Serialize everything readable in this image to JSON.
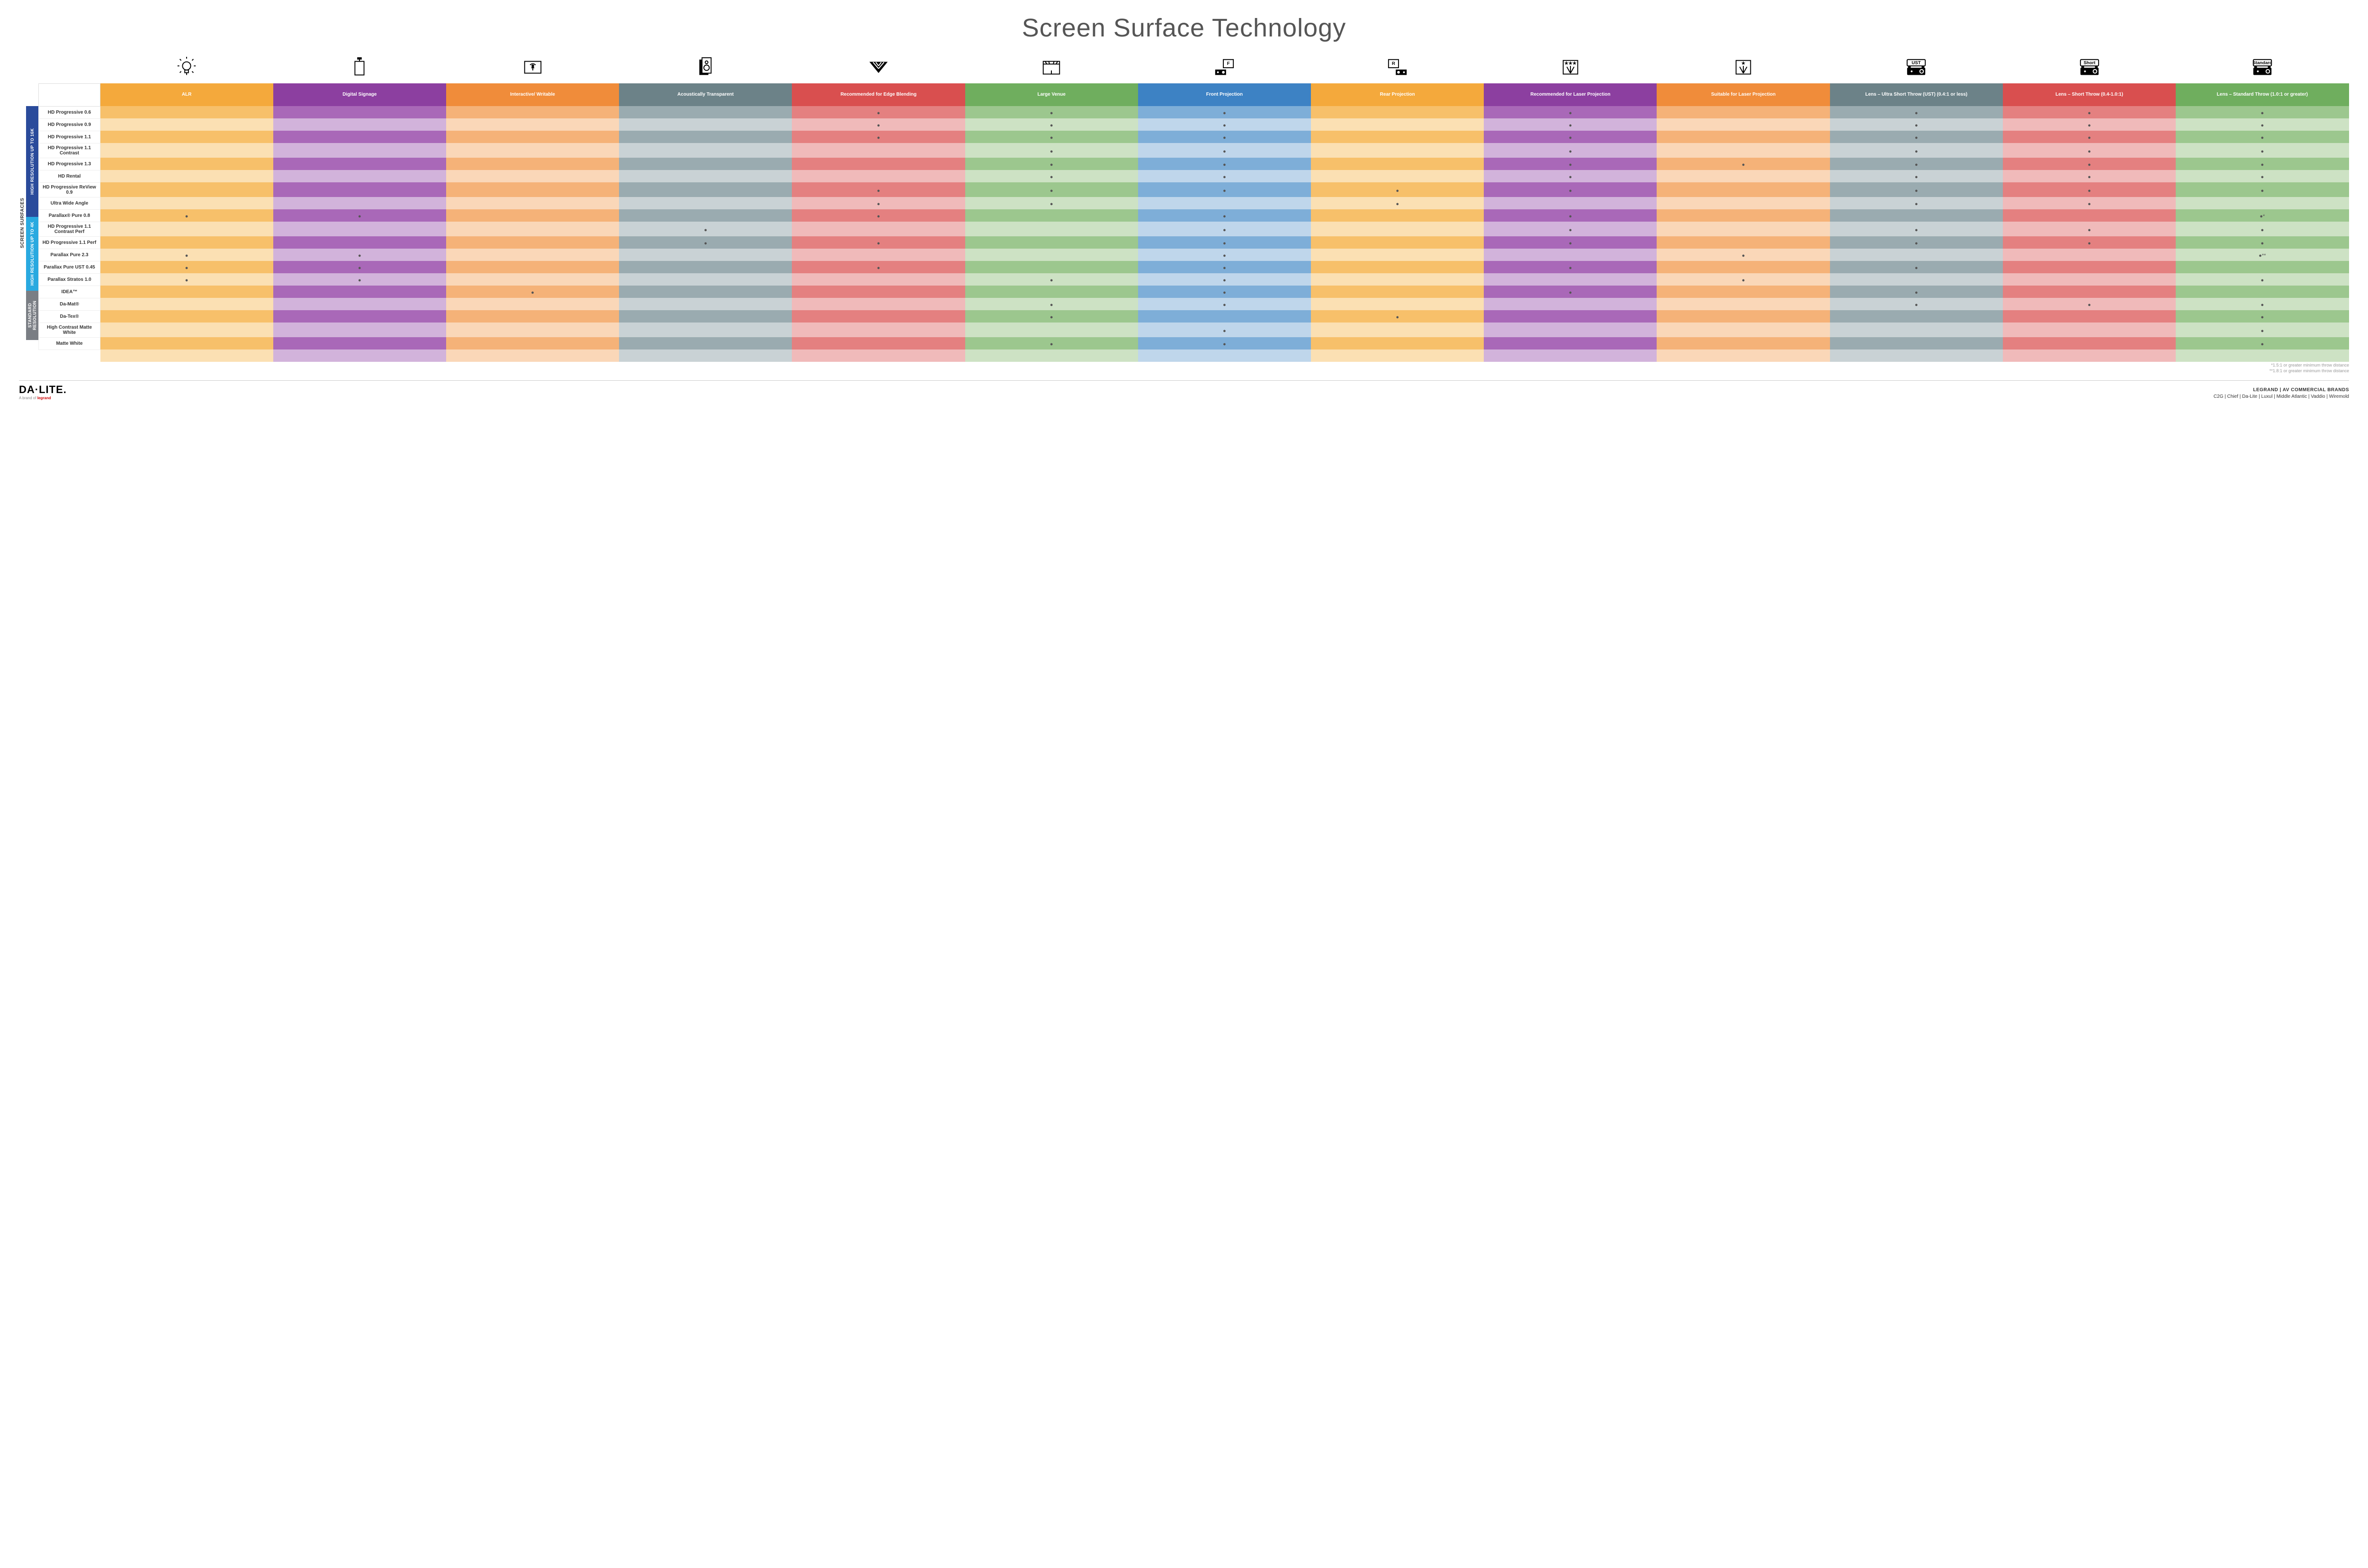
{
  "title": "Screen Surface Technology",
  "outer_label": "SCREEN SURFACES",
  "categories": [
    {
      "label": "HIGH RESOLUTION UP TO 16K",
      "bg": "#2a4b9b",
      "rows": 9
    },
    {
      "label": "HIGH RESOLUTION UP TO 4K",
      "bg": "#29a9e0",
      "rows": 6
    },
    {
      "label": "STANDARD RESOLUTION",
      "bg": "#7a7e84",
      "rows": 4
    }
  ],
  "features_header": "FEATURES",
  "columns": [
    {
      "label": "ALR",
      "bg": "#f4a93c",
      "alt": "#f7c06a",
      "alt2": "#fbe0b3",
      "icon": "bulb"
    },
    {
      "label": "Digital Signage",
      "bg": "#8c3fa0",
      "alt": "#a968b8",
      "alt2": "#d2b3db",
      "icon": "signage"
    },
    {
      "label": "Interactive/ Writable",
      "bg": "#f08c3a",
      "alt": "#f5b278",
      "alt2": "#fad7b8",
      "icon": "touch"
    },
    {
      "label": "Acoustically Transparent",
      "bg": "#6c8288",
      "alt": "#9aabb0",
      "alt2": "#c9d2d5",
      "icon": "speaker"
    },
    {
      "label": "Recommended for Edge Blending",
      "bg": "#d94f4f",
      "alt": "#e48080",
      "alt2": "#f0baba",
      "icon": "blend"
    },
    {
      "label": "Large Venue",
      "bg": "#6fae5e",
      "alt": "#9cc78e",
      "alt2": "#cde2c4",
      "icon": "venue"
    },
    {
      "label": "Front Projection",
      "bg": "#3d82c4",
      "alt": "#7eaed8",
      "alt2": "#bfd6eb",
      "icon": "front"
    },
    {
      "label": "Rear Projection",
      "bg": "#f4a93c",
      "alt": "#f7c06a",
      "alt2": "#fbe0b3",
      "icon": "rear"
    },
    {
      "label": "Recommended for Laser Projection",
      "bg": "#8c3fa0",
      "alt": "#a968b8",
      "alt2": "#d2b3db",
      "icon": "laser3"
    },
    {
      "label": "Suitable for Laser Projection",
      "bg": "#f08c3a",
      "alt": "#f5b278",
      "alt2": "#fad7b8",
      "icon": "laser1"
    },
    {
      "label": "Lens – Ultra Short Throw (UST) (0.4:1 or less)",
      "bg": "#6c8288",
      "alt": "#9aabb0",
      "alt2": "#c9d2d5",
      "icon": "ust"
    },
    {
      "label": "Lens – Short Throw (0.4-1.0:1)",
      "bg": "#d94f4f",
      "alt": "#e48080",
      "alt2": "#f0baba",
      "icon": "short"
    },
    {
      "label": "Lens – Standard Throw (1.0:1 or greater)",
      "bg": "#6fae5e",
      "alt": "#9cc78e",
      "alt2": "#cde2c4",
      "icon": "standard"
    }
  ],
  "rows": [
    {
      "label": "HD Progressive 0.6",
      "dots": [
        0,
        0,
        0,
        0,
        1,
        1,
        1,
        0,
        1,
        0,
        1,
        1,
        1
      ]
    },
    {
      "label": "HD Progressive 0.9",
      "dots": [
        0,
        0,
        0,
        0,
        1,
        1,
        1,
        0,
        1,
        0,
        1,
        1,
        1
      ]
    },
    {
      "label": "HD Progressive 1.1",
      "dots": [
        0,
        0,
        0,
        0,
        1,
        1,
        1,
        0,
        1,
        0,
        1,
        1,
        1
      ]
    },
    {
      "label": "HD Progressive 1.1 Contrast",
      "dots": [
        0,
        0,
        0,
        0,
        0,
        1,
        1,
        0,
        1,
        0,
        1,
        1,
        1
      ]
    },
    {
      "label": "HD Progressive 1.3",
      "dots": [
        0,
        0,
        0,
        0,
        0,
        1,
        1,
        0,
        1,
        1,
        1,
        1,
        1
      ]
    },
    {
      "label": "HD Rental",
      "dots": [
        0,
        0,
        0,
        0,
        0,
        1,
        1,
        0,
        1,
        0,
        1,
        1,
        1
      ]
    },
    {
      "label": "HD Progressive ReView 0.9",
      "dots": [
        0,
        0,
        0,
        0,
        1,
        1,
        1,
        1,
        1,
        0,
        1,
        1,
        1
      ]
    },
    {
      "label": "Ultra Wide Angle",
      "dots": [
        0,
        0,
        0,
        0,
        1,
        1,
        0,
        1,
        0,
        0,
        1,
        1,
        0
      ]
    },
    {
      "label": "Parallax® Pure 0.8",
      "dots": [
        1,
        1,
        0,
        0,
        1,
        0,
        1,
        0,
        1,
        0,
        0,
        0,
        "●*"
      ]
    },
    {
      "label": "HD Progressive 1.1 Contrast Perf",
      "dots": [
        0,
        0,
        0,
        1,
        0,
        0,
        1,
        0,
        1,
        0,
        1,
        1,
        1
      ]
    },
    {
      "label": "HD Progressive 1.1 Perf",
      "dots": [
        0,
        0,
        0,
        1,
        1,
        0,
        1,
        0,
        1,
        0,
        1,
        1,
        1
      ]
    },
    {
      "label": "Parallax Pure 2.3",
      "dots": [
        1,
        1,
        0,
        0,
        0,
        0,
        1,
        0,
        0,
        1,
        0,
        0,
        "●**"
      ]
    },
    {
      "label": "Parallax Pure UST 0.45",
      "dots": [
        1,
        1,
        0,
        0,
        1,
        0,
        1,
        0,
        1,
        0,
        1,
        0,
        0
      ]
    },
    {
      "label": "Parallax Stratos 1.0",
      "dots": [
        1,
        1,
        0,
        0,
        0,
        1,
        1,
        0,
        0,
        1,
        0,
        0,
        1
      ]
    },
    {
      "label": "IDEA™",
      "dots": [
        0,
        0,
        1,
        0,
        0,
        0,
        1,
        0,
        1,
        0,
        1,
        0,
        0
      ]
    },
    {
      "label": "Da-Mat®",
      "dots": [
        0,
        0,
        0,
        0,
        0,
        1,
        1,
        0,
        0,
        0,
        1,
        1,
        1
      ]
    },
    {
      "label": "Da-Tex®",
      "dots": [
        0,
        0,
        0,
        0,
        0,
        1,
        0,
        1,
        0,
        0,
        0,
        0,
        1
      ]
    },
    {
      "label": "High Contrast Matte White",
      "dots": [
        0,
        0,
        0,
        0,
        0,
        0,
        1,
        0,
        0,
        0,
        0,
        0,
        1
      ]
    },
    {
      "label": "Matte White",
      "dots": [
        0,
        0,
        0,
        0,
        0,
        1,
        1,
        0,
        0,
        0,
        0,
        0,
        1
      ]
    }
  ],
  "footnotes": [
    "*1.5:1 or greater minimum throw distance",
    "**1.8:1 or greater minimum throw distance"
  ],
  "footer": {
    "logo": "DA·LITE.",
    "logosub_pre": "A brand of ",
    "logosub_brand": "legrand",
    "brands_top": "LEGRAND | AV COMMERCIAL BRANDS",
    "brands_list": "C2G  |  Chief  |  Da-Lite  |  Luxul  |  Middle Atlantic  |  Vaddio  |  Wiremold"
  }
}
